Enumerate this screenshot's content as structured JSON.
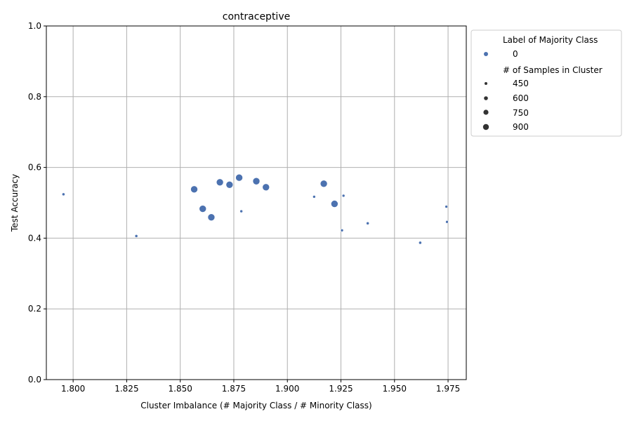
{
  "chart_data": {
    "type": "scatter",
    "title": "contraceptive",
    "xlabel": "Cluster Imbalance (# Majority Class / # Minority Class)",
    "ylabel": "Test Accuracy",
    "xlim": [
      1.7875,
      1.9835
    ],
    "ylim": [
      0.0,
      1.0
    ],
    "x_ticks": [
      "1.800",
      "1.825",
      "1.850",
      "1.875",
      "1.900",
      "1.925",
      "1.950",
      "1.975"
    ],
    "y_ticks": [
      "0.0",
      "0.2",
      "0.4",
      "0.6",
      "0.8",
      "1.0"
    ],
    "grid": true,
    "point_color": "#4c72b0",
    "series": [
      {
        "name": "0",
        "points": [
          {
            "x": 1.7955,
            "y": 0.524,
            "n": 460
          },
          {
            "x": 1.8295,
            "y": 0.406,
            "n": 460
          },
          {
            "x": 1.8565,
            "y": 0.538,
            "n": 900
          },
          {
            "x": 1.8605,
            "y": 0.483,
            "n": 900
          },
          {
            "x": 1.8645,
            "y": 0.459,
            "n": 900
          },
          {
            "x": 1.8685,
            "y": 0.558,
            "n": 900
          },
          {
            "x": 1.873,
            "y": 0.551,
            "n": 900
          },
          {
            "x": 1.8775,
            "y": 0.571,
            "n": 900
          },
          {
            "x": 1.8785,
            "y": 0.476,
            "n": 450
          },
          {
            "x": 1.8855,
            "y": 0.561,
            "n": 900
          },
          {
            "x": 1.89,
            "y": 0.544,
            "n": 900
          },
          {
            "x": 1.9125,
            "y": 0.517,
            "n": 450
          },
          {
            "x": 1.917,
            "y": 0.554,
            "n": 900
          },
          {
            "x": 1.922,
            "y": 0.497,
            "n": 900
          },
          {
            "x": 1.9255,
            "y": 0.422,
            "n": 450
          },
          {
            "x": 1.9262,
            "y": 0.52,
            "n": 450
          },
          {
            "x": 1.9375,
            "y": 0.442,
            "n": 460
          },
          {
            "x": 1.962,
            "y": 0.387,
            "n": 460
          },
          {
            "x": 1.9742,
            "y": 0.489,
            "n": 450
          },
          {
            "x": 1.9745,
            "y": 0.446,
            "n": 450
          }
        ]
      }
    ],
    "legend": {
      "placement": "outside-right-top",
      "hue_title": "Label of Majority Class",
      "hue_entries": [
        "0"
      ],
      "size_title": "# of Samples in Cluster",
      "size_entries": [
        "450",
        "600",
        "750",
        "900"
      ],
      "size_values": [
        450,
        600,
        750,
        900
      ]
    }
  }
}
